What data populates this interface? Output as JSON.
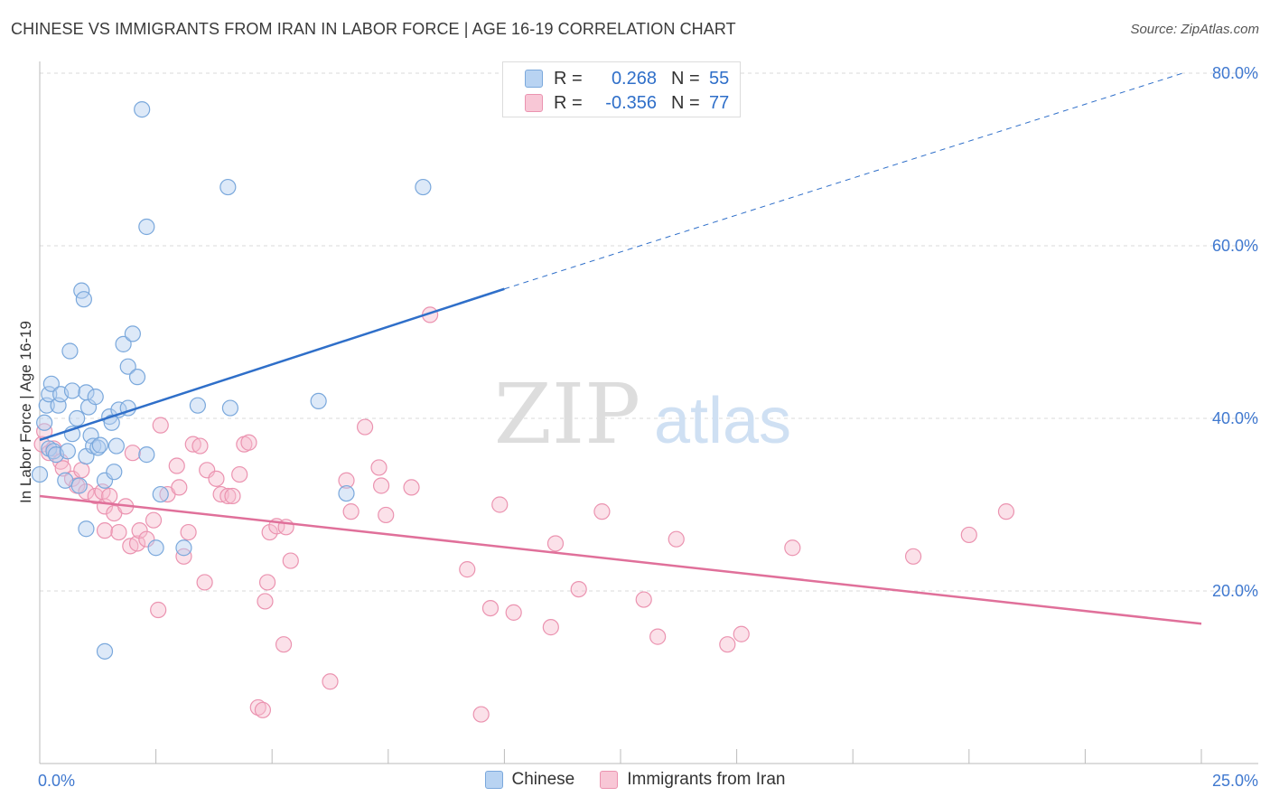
{
  "title": "CHINESE VS IMMIGRANTS FROM IRAN IN LABOR FORCE | AGE 16-19 CORRELATION CHART",
  "source": "Source: ZipAtlas.com",
  "watermark": {
    "zip": "ZIP",
    "atlas": "atlas"
  },
  "stats": {
    "r_label": "R =",
    "n_label": "N =",
    "rows": [
      {
        "r": "0.268",
        "n": "55",
        "color": "#7aa8dc"
      },
      {
        "r": "-0.356",
        "n": "77",
        "color": "#eb93b0"
      }
    ]
  },
  "legend": {
    "series1": "Chinese",
    "series2": "Immigrants from Iran"
  },
  "chart_data": {
    "type": "scatter",
    "title": "CHINESE VS IMMIGRANTS FROM IRAN IN LABOR FORCE | AGE 16-19 CORRELATION CHART",
    "xlabel": "",
    "ylabel": "In Labor Force | Age 16-19",
    "xlim": [
      0,
      25
    ],
    "ylim": [
      0,
      80
    ],
    "x_tick_labels": [
      "0.0%",
      "25.0%"
    ],
    "y_ticks": [
      20,
      40,
      60,
      80
    ],
    "y_tick_labels": [
      "20.0%",
      "40.0%",
      "60.0%",
      "80.0%"
    ],
    "grid": "horizontal dashed",
    "colors": {
      "chinese": "#7aa8dc",
      "chinese_line": "#2f6fc9",
      "iran": "#eb93b0",
      "iran_line": "#e0709a",
      "tick_text": "#3f78cf"
    },
    "series": [
      {
        "name": "Chinese",
        "trend": {
          "x": [
            0.0,
            10.0
          ],
          "y": [
            37.5,
            55.0
          ],
          "dashed_to": [
            24.6,
            80.0
          ]
        },
        "points": [
          [
            0.0,
            33.5
          ],
          [
            0.1,
            39.5
          ],
          [
            0.15,
            41.5
          ],
          [
            0.2,
            36.5
          ],
          [
            0.2,
            42.8
          ],
          [
            0.25,
            44.0
          ],
          [
            0.3,
            36.2
          ],
          [
            0.35,
            35.8
          ],
          [
            0.4,
            41.5
          ],
          [
            0.45,
            42.8
          ],
          [
            0.55,
            32.8
          ],
          [
            0.6,
            36.2
          ],
          [
            0.65,
            47.8
          ],
          [
            0.7,
            38.2
          ],
          [
            0.7,
            43.2
          ],
          [
            0.8,
            40.0
          ],
          [
            0.85,
            32.2
          ],
          [
            0.9,
            54.8
          ],
          [
            0.95,
            53.8
          ],
          [
            1.0,
            43.0
          ],
          [
            1.0,
            27.2
          ],
          [
            1.0,
            35.6
          ],
          [
            1.05,
            41.3
          ],
          [
            1.1,
            38.0
          ],
          [
            1.15,
            36.8
          ],
          [
            1.2,
            42.5
          ],
          [
            1.25,
            36.6
          ],
          [
            1.3,
            36.9
          ],
          [
            1.4,
            32.8
          ],
          [
            1.4,
            13.0
          ],
          [
            1.5,
            40.2
          ],
          [
            1.55,
            39.5
          ],
          [
            1.6,
            33.8
          ],
          [
            1.65,
            36.8
          ],
          [
            1.7,
            41.0
          ],
          [
            1.8,
            48.6
          ],
          [
            1.9,
            46.0
          ],
          [
            1.9,
            41.2
          ],
          [
            2.0,
            49.8
          ],
          [
            2.1,
            44.8
          ],
          [
            2.2,
            75.8
          ],
          [
            2.3,
            35.8
          ],
          [
            2.3,
            62.2
          ],
          [
            2.5,
            25.0
          ],
          [
            2.6,
            31.2
          ],
          [
            3.1,
            25.0
          ],
          [
            3.4,
            41.5
          ],
          [
            4.05,
            66.8
          ],
          [
            4.1,
            41.2
          ],
          [
            6.0,
            42.0
          ],
          [
            6.6,
            31.3
          ],
          [
            8.25,
            66.8
          ]
        ]
      },
      {
        "name": "Immigrants from Iran",
        "trend": {
          "x": [
            0.0,
            25.0
          ],
          "y": [
            31.0,
            16.2
          ]
        },
        "points": [
          [
            0.05,
            37.0
          ],
          [
            0.1,
            38.5
          ],
          [
            0.2,
            36.0
          ],
          [
            0.3,
            36.5
          ],
          [
            0.45,
            35.0
          ],
          [
            0.5,
            34.2
          ],
          [
            0.7,
            33.0
          ],
          [
            0.8,
            32.2
          ],
          [
            0.9,
            34.0
          ],
          [
            1.0,
            31.5
          ],
          [
            1.2,
            31.0
          ],
          [
            1.35,
            31.5
          ],
          [
            1.4,
            29.8
          ],
          [
            1.4,
            27.0
          ],
          [
            1.5,
            31.0
          ],
          [
            1.6,
            29.0
          ],
          [
            1.7,
            26.8
          ],
          [
            1.85,
            29.8
          ],
          [
            1.95,
            25.2
          ],
          [
            2.0,
            36.0
          ],
          [
            2.1,
            25.5
          ],
          [
            2.15,
            27.0
          ],
          [
            2.3,
            26.0
          ],
          [
            2.45,
            28.2
          ],
          [
            2.55,
            17.8
          ],
          [
            2.6,
            39.2
          ],
          [
            2.75,
            31.2
          ],
          [
            2.95,
            34.5
          ],
          [
            3.0,
            32.0
          ],
          [
            3.1,
            24.0
          ],
          [
            3.2,
            26.8
          ],
          [
            3.3,
            37.0
          ],
          [
            3.45,
            36.8
          ],
          [
            3.55,
            21.0
          ],
          [
            3.6,
            34.0
          ],
          [
            3.8,
            33.0
          ],
          [
            3.9,
            31.2
          ],
          [
            4.05,
            31.0
          ],
          [
            4.15,
            31.0
          ],
          [
            4.3,
            33.5
          ],
          [
            4.4,
            37.0
          ],
          [
            4.5,
            37.2
          ],
          [
            4.7,
            6.5
          ],
          [
            4.8,
            6.2
          ],
          [
            4.85,
            18.8
          ],
          [
            4.9,
            21.0
          ],
          [
            4.95,
            26.8
          ],
          [
            5.1,
            27.5
          ],
          [
            5.25,
            13.8
          ],
          [
            5.3,
            27.4
          ],
          [
            5.4,
            23.5
          ],
          [
            6.25,
            9.5
          ],
          [
            6.6,
            32.8
          ],
          [
            6.7,
            29.2
          ],
          [
            7.0,
            39.0
          ],
          [
            7.3,
            34.3
          ],
          [
            7.35,
            32.2
          ],
          [
            7.45,
            28.8
          ],
          [
            8.0,
            32.0
          ],
          [
            8.4,
            52.0
          ],
          [
            9.2,
            22.5
          ],
          [
            9.5,
            5.7
          ],
          [
            9.7,
            18.0
          ],
          [
            9.9,
            30.0
          ],
          [
            10.2,
            17.5
          ],
          [
            11.0,
            15.8
          ],
          [
            11.1,
            25.5
          ],
          [
            11.6,
            20.2
          ],
          [
            12.1,
            29.2
          ],
          [
            13.0,
            19.0
          ],
          [
            13.3,
            14.7
          ],
          [
            13.7,
            26.0
          ],
          [
            14.8,
            13.8
          ],
          [
            15.1,
            15.0
          ],
          [
            16.2,
            25.0
          ],
          [
            18.8,
            24.0
          ],
          [
            20.0,
            26.5
          ],
          [
            20.8,
            29.2
          ]
        ]
      }
    ]
  }
}
